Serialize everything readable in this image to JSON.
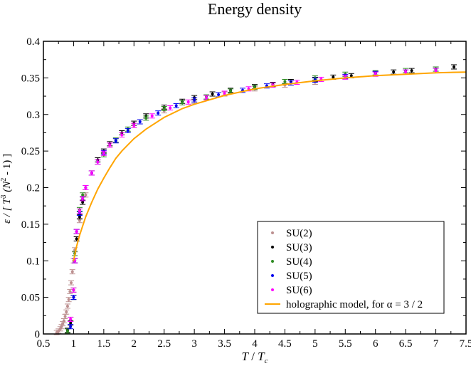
{
  "chart_data": {
    "type": "scatter",
    "title": "Energy density",
    "xlabel": {
      "main": "T",
      "sep": " / ",
      "base": "T",
      "sub": "c"
    },
    "ylabel": {
      "a": "ε / [ T",
      "b": "3",
      "c": " (N",
      "d": "2",
      "e": " - 1) ]"
    },
    "xlim": [
      0.5,
      7.5
    ],
    "ylim": [
      0,
      0.4
    ],
    "xticks": [
      {
        "v": 0.5,
        "label": "0.5"
      },
      {
        "v": 1,
        "label": "1"
      },
      {
        "v": 1.5,
        "label": "1.5"
      },
      {
        "v": 2,
        "label": "2"
      },
      {
        "v": 2.5,
        "label": "2.5"
      },
      {
        "v": 3,
        "label": "3"
      },
      {
        "v": 3.5,
        "label": "3.5"
      },
      {
        "v": 4,
        "label": "4"
      },
      {
        "v": 4.5,
        "label": "4.5"
      },
      {
        "v": 5,
        "label": "5"
      },
      {
        "v": 5.5,
        "label": "5.5"
      },
      {
        "v": 6,
        "label": "6"
      },
      {
        "v": 6.5,
        "label": "6.5"
      },
      {
        "v": 7,
        "label": "7"
      },
      {
        "v": 7.5,
        "label": "7.5"
      }
    ],
    "yticks": [
      {
        "v": 0,
        "label": "0"
      },
      {
        "v": 0.05,
        "label": "0.05"
      },
      {
        "v": 0.1,
        "label": "0.1"
      },
      {
        "v": 0.15,
        "label": "0.15"
      },
      {
        "v": 0.2,
        "label": "0.2"
      },
      {
        "v": 0.25,
        "label": "0.25"
      },
      {
        "v": 0.3,
        "label": "0.3"
      },
      {
        "v": 0.35,
        "label": "0.35"
      },
      {
        "v": 0.4,
        "label": "0.4"
      }
    ],
    "series": [
      {
        "name": "SU(2)",
        "color": "#bc8f8f",
        "marker": "point",
        "x": [
          0.72,
          0.75,
          0.78,
          0.8,
          0.82,
          0.84,
          0.86,
          0.88,
          0.9,
          0.92,
          0.94,
          0.96,
          0.98,
          1.0,
          1.02,
          1.05,
          1.1,
          1.2,
          1.4,
          1.7,
          2.0,
          2.5,
          3.0,
          3.5,
          4.0,
          4.5,
          5.0
        ],
        "y": [
          0.002,
          0.004,
          0.007,
          0.01,
          0.014,
          0.018,
          0.024,
          0.03,
          0.038,
          0.047,
          0.058,
          0.07,
          0.085,
          0.1,
          0.115,
          0.13,
          0.155,
          0.19,
          0.235,
          0.265,
          0.285,
          0.305,
          0.318,
          0.328,
          0.335,
          0.34,
          0.344
        ]
      },
      {
        "name": "SU(3)",
        "color": "#000000",
        "marker": "point",
        "x": [
          0.9,
          0.95,
          1.0,
          1.02,
          1.05,
          1.1,
          1.15,
          1.2,
          1.3,
          1.4,
          1.5,
          1.6,
          1.8,
          2.0,
          2.2,
          2.5,
          2.8,
          3.0,
          3.3,
          3.6,
          4.0,
          4.3,
          4.6,
          5.0,
          5.3,
          5.6,
          6.0,
          6.3,
          6.6,
          7.0,
          7.3
        ],
        "y": [
          0.005,
          0.015,
          0.05,
          0.1,
          0.13,
          0.16,
          0.18,
          0.2,
          0.22,
          0.238,
          0.25,
          0.26,
          0.275,
          0.288,
          0.298,
          0.31,
          0.318,
          0.323,
          0.328,
          0.333,
          0.338,
          0.341,
          0.345,
          0.348,
          0.351,
          0.353,
          0.356,
          0.358,
          0.36,
          0.362,
          0.365
        ]
      },
      {
        "name": "SU(4)",
        "color": "#2e8b22",
        "marker": "point",
        "x": [
          0.9,
          0.95,
          1.0,
          1.02,
          1.05,
          1.1,
          1.15,
          1.2,
          1.3,
          1.4,
          1.5,
          1.7,
          1.9,
          2.2,
          2.5,
          2.8,
          3.2,
          3.6,
          4.0,
          4.5,
          5.0,
          5.5,
          6.0,
          6.5,
          7.0
        ],
        "y": [
          0.004,
          0.02,
          0.06,
          0.11,
          0.14,
          0.17,
          0.19,
          0.2,
          0.22,
          0.235,
          0.245,
          0.265,
          0.28,
          0.295,
          0.308,
          0.316,
          0.324,
          0.332,
          0.337,
          0.345,
          0.35,
          0.355,
          0.357,
          0.36,
          0.362
        ]
      },
      {
        "name": "SU(5)",
        "color": "#0000ee",
        "marker": "point",
        "x": [
          0.95,
          1.0,
          1.02,
          1.05,
          1.1,
          1.15,
          1.2,
          1.3,
          1.4,
          1.5,
          1.7,
          1.9,
          2.1,
          2.4,
          2.7,
          3.0,
          3.4,
          3.8,
          4.2,
          4.6,
          5.0,
          5.5,
          6.0,
          6.5,
          7.0
        ],
        "y": [
          0.01,
          0.05,
          0.1,
          0.14,
          0.165,
          0.185,
          0.2,
          0.22,
          0.235,
          0.248,
          0.264,
          0.278,
          0.29,
          0.302,
          0.312,
          0.32,
          0.327,
          0.333,
          0.339,
          0.343,
          0.347,
          0.352,
          0.356,
          0.358,
          0.36
        ]
      },
      {
        "name": "SU(6)",
        "color": "#ff00ff",
        "marker": "point",
        "x": [
          0.95,
          1.0,
          1.02,
          1.05,
          1.1,
          1.15,
          1.2,
          1.3,
          1.4,
          1.5,
          1.6,
          1.8,
          2.0,
          2.3,
          2.6,
          2.9,
          3.2,
          3.5,
          3.9,
          4.3,
          4.7,
          5.1,
          5.5,
          6.0,
          6.5,
          7.0
        ],
        "y": [
          0.02,
          0.06,
          0.1,
          0.14,
          0.168,
          0.185,
          0.2,
          0.22,
          0.235,
          0.247,
          0.258,
          0.272,
          0.285,
          0.298,
          0.309,
          0.317,
          0.323,
          0.329,
          0.335,
          0.34,
          0.344,
          0.348,
          0.351,
          0.355,
          0.358,
          0.36
        ]
      }
    ],
    "model": {
      "name": "holographic model, for α = 3 / 2",
      "color": "#ffa500",
      "x": [
        1.0,
        1.05,
        1.1,
        1.2,
        1.3,
        1.4,
        1.5,
        1.6,
        1.7,
        1.8,
        2.0,
        2.2,
        2.5,
        2.8,
        3.0,
        3.5,
        4.0,
        4.5,
        5.0,
        5.5,
        6.0,
        6.5,
        7.0,
        7.5
      ],
      "y": [
        0.1,
        0.12,
        0.135,
        0.16,
        0.18,
        0.198,
        0.213,
        0.227,
        0.24,
        0.25,
        0.267,
        0.28,
        0.296,
        0.308,
        0.314,
        0.326,
        0.335,
        0.341,
        0.346,
        0.35,
        0.353,
        0.355,
        0.357,
        0.358
      ]
    },
    "legend_position": "bottom-right"
  }
}
